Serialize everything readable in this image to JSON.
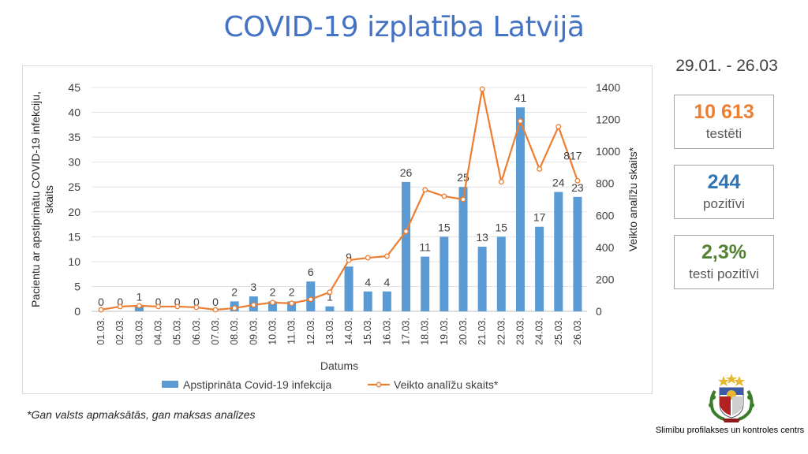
{
  "title": "COVID-19 izplatība Latvijā",
  "date_range": "29.01. - 26.03",
  "stats": {
    "tested": {
      "value": "10 613",
      "label": "testēti",
      "color": "#ed7d31"
    },
    "positive": {
      "value": "244",
      "label": "pozitīvi",
      "color": "#2e75b6"
    },
    "rate": {
      "value": "2,3%",
      "label": "testi pozitīvi",
      "color": "#548235"
    }
  },
  "footnote": "*Gan valsts apmaksātās, gan maksas analīzes",
  "org_name": "Slimību profilakses un kontroles centrs",
  "chart_data": {
    "type": "bar+line",
    "categories": [
      "01.03.",
      "02.03.",
      "03.03.",
      "04.03.",
      "05.03.",
      "06.03.",
      "07.03.",
      "08.03.",
      "09.03.",
      "10.03.",
      "11.03.",
      "12.03.",
      "13.03.",
      "14.03.",
      "15.03.",
      "16.03.",
      "17.03.",
      "18.03.",
      "19.03.",
      "20.03.",
      "21.03.",
      "22.03.",
      "23.03.",
      "24.03.",
      "25.03.",
      "26.03."
    ],
    "xlabel": "Datums",
    "ylabel_left": "Pacientu ar apstiprinātu COVID-19 infekciju, skaits",
    "ylabel_right": "Veikto analīžu skaits*",
    "ylim_left": [
      0,
      45
    ],
    "yticks_left": [
      "0",
      "5",
      "10",
      "15",
      "20",
      "25",
      "30",
      "35",
      "40",
      "45"
    ],
    "ylim_right": [
      0,
      1400
    ],
    "yticks_right": [
      "0",
      "200",
      "400",
      "600",
      "800",
      "1000",
      "1200",
      "1400"
    ],
    "grid": true,
    "legend_position": "bottom",
    "series": [
      {
        "name": "Apstiprināta Covid-19 infekcija",
        "kind": "bar",
        "axis": "left",
        "color": "#5b9bd5",
        "values": [
          0,
          0,
          1,
          0,
          0,
          0,
          0,
          2,
          3,
          2,
          2,
          6,
          1,
          9,
          4,
          4,
          26,
          11,
          15,
          25,
          13,
          15,
          41,
          17,
          24,
          23
        ]
      },
      {
        "name": "Veikto analīžu skaits*",
        "kind": "line",
        "axis": "right",
        "color": "#ed7d31",
        "values": [
          10,
          30,
          35,
          30,
          30,
          25,
          10,
          20,
          40,
          55,
          50,
          75,
          120,
          320,
          335,
          345,
          500,
          760,
          720,
          700,
          1390,
          810,
          1190,
          890,
          1155,
          817
        ]
      }
    ],
    "annotations": [
      {
        "series": 1,
        "index": 25,
        "text": "817"
      }
    ]
  }
}
